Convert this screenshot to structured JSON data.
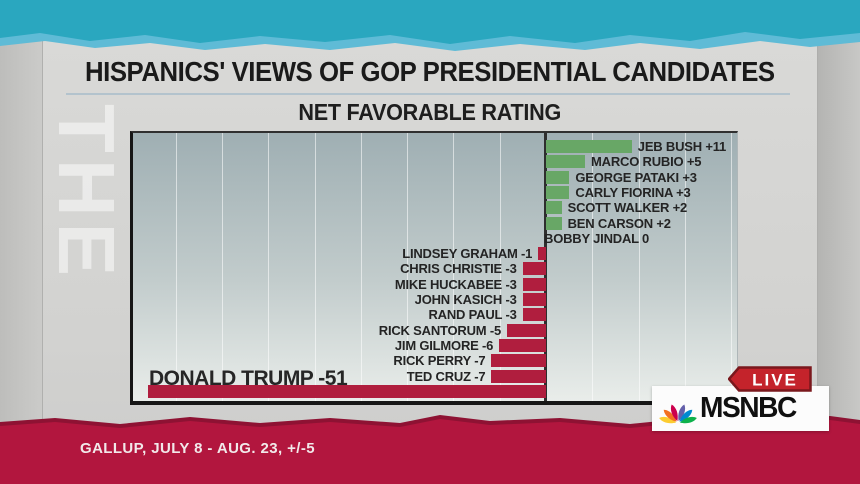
{
  "header": {
    "title": "HISPANICS' VIEWS OF GOP PRESIDENTIAL CANDIDATES",
    "subtitle": "NET FAVORABLE RATING"
  },
  "source_line": "GALLUP, JULY 8 - AUG. 23, +/-5",
  "watermark": "THE",
  "broadcast": {
    "live_label": "LIVE",
    "network": "MSNBC",
    "peacock_colors": [
      "#fccc30",
      "#f37021",
      "#cc004c",
      "#6460aa",
      "#0089d0",
      "#0db14b"
    ]
  },
  "colors": {
    "teal_band": "#2aa7bf",
    "teal_band_light": "#5fbbd6",
    "red_band": "#b2163e",
    "red_band_dark": "#8e1233",
    "positive_bar": "#68a766",
    "negative_bar": "#b01e3e",
    "live_badge": "#c4232b",
    "live_badge_border": "#7a181d"
  },
  "chart_data": {
    "type": "bar",
    "orientation": "horizontal",
    "title": "NET FAVORABLE RATING",
    "xlabel": "",
    "ylabel": "",
    "xlim": [
      -53,
      24.5
    ],
    "grid": true,
    "legend": false,
    "categories": [
      "JEB BUSH",
      "MARCO RUBIO",
      "GEORGE PATAKI",
      "CARLY FIORINA",
      "SCOTT WALKER",
      "BEN CARSON",
      "BOBBY JINDAL",
      "LINDSEY GRAHAM",
      "CHRIS CHRISTIE",
      "MIKE HUCKABEE",
      "JOHN KASICH",
      "RAND PAUL",
      "RICK SANTORUM",
      "JIM GILMORE",
      "RICK PERRY",
      "TED CRUZ",
      "DONALD TRUMP"
    ],
    "values": [
      11,
      5,
      3,
      3,
      2,
      2,
      0,
      -1,
      -3,
      -3,
      -3,
      -3,
      -5,
      -6,
      -7,
      -7,
      -51
    ],
    "labels": [
      "JEB BUSH +11",
      "MARCO RUBIO +5",
      "GEORGE PATAKI +3",
      "CARLY FIORINA +3",
      "SCOTT WALKER +2",
      "BEN CARSON +2",
      "BOBBY JINDAL 0",
      "LINDSEY GRAHAM -1",
      "CHRIS CHRISTIE -3",
      "MIKE HUCKABEE -3",
      "JOHN KASICH -3",
      "RAND PAUL -3",
      "RICK SANTORUM -5",
      "JIM GILMORE -6",
      "RICK PERRY -7",
      "TED CRUZ -7",
      "DONALD TRUMP -51"
    ]
  }
}
